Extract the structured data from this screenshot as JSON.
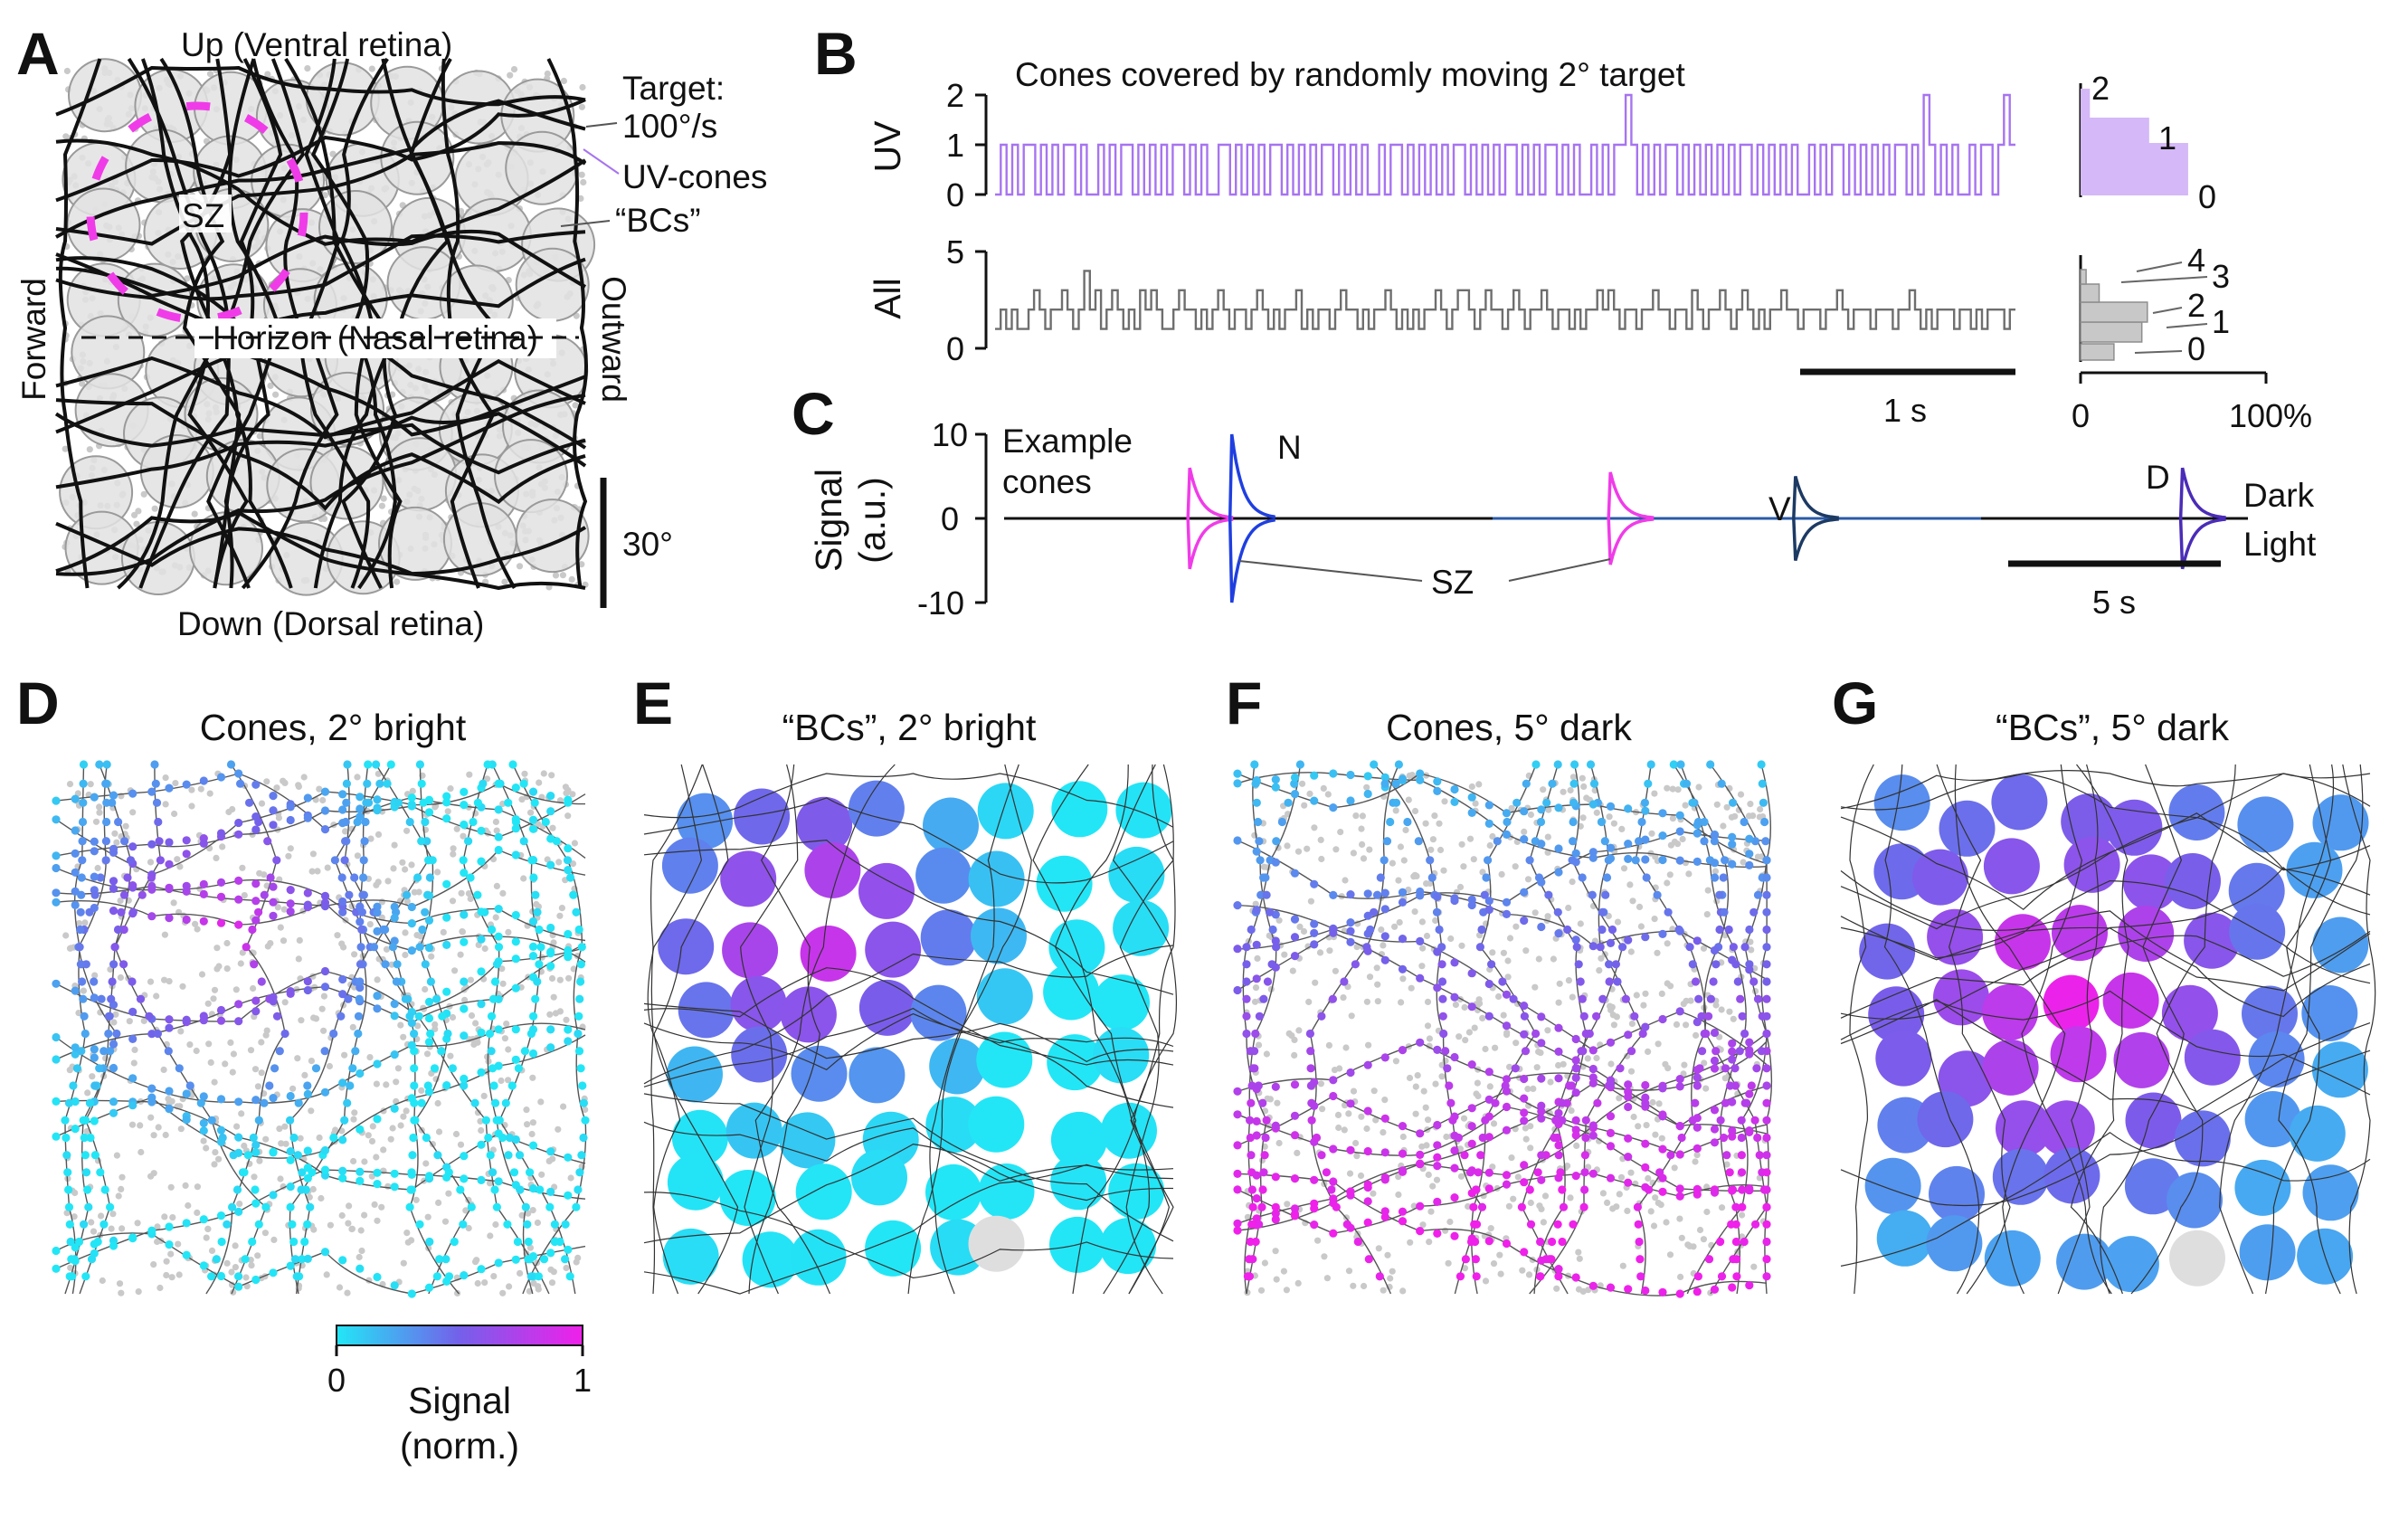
{
  "panels": {
    "A": {
      "letter": "A",
      "top": "Up (Ventral retina)",
      "bottom": "Down (Dorsal retina)",
      "left": "Forward",
      "right": "Outward",
      "horizon": "Horizon (Nasal retina)",
      "sz": "SZ",
      "target_line1": "Target:",
      "target_line2": "100°/s",
      "uv_cones": "UV-cones",
      "bcs": "“BCs”",
      "scale": "30°"
    },
    "B": {
      "letter": "B",
      "title": "Cones covered by randomly moving 2° target",
      "uv_label": "UV",
      "all_label": "All",
      "uv_ticks": [
        "2",
        "1",
        "0"
      ],
      "all_ticks": [
        "5",
        "0"
      ],
      "scale": "1 s",
      "hist_uv_labels": [
        "2",
        "1",
        "0"
      ],
      "hist_all_labels": [
        "4",
        "3",
        "2",
        "1",
        "0"
      ],
      "hist_axis": [
        "0",
        "100%"
      ]
    },
    "C": {
      "letter": "C",
      "ylabel1": "Signal",
      "ylabel2": "(a.u.)",
      "ticks": [
        "10",
        "0",
        "-10"
      ],
      "legend1": "Example",
      "legend2": "cones",
      "n": "N",
      "v": "V",
      "d": "D",
      "dark": "Dark",
      "light": "Light",
      "sz": "SZ",
      "scale": "5 s"
    },
    "D": {
      "letter": "D",
      "title": "Cones, 2° bright"
    },
    "E": {
      "letter": "E",
      "title": "“BCs”, 2° bright"
    },
    "F": {
      "letter": "F",
      "title": "Cones, 5° dark"
    },
    "G": {
      "letter": "G",
      "title": "“BCs”, 5° dark"
    },
    "colorbar": {
      "min": "0",
      "max": "1",
      "label1": "Signal",
      "label2": "(norm.)"
    }
  },
  "colors": {
    "uv_trace": "#a774f0",
    "all_trace": "#6e6e6e",
    "sz_marker": "#f03ce8",
    "colormap_low": "#22e6f6",
    "colormap_mid": "#7460ea",
    "colormap_high": "#f020ea",
    "cone_gray": "#c9c9c9"
  },
  "chart_data": [
    {
      "panel": "B",
      "type": "line",
      "title": "Cones covered by randomly moving 2° target",
      "series": [
        {
          "name": "UV",
          "ylim": [
            0,
            2
          ],
          "values": [
            0,
            1,
            0,
            1,
            0,
            1,
            1,
            0,
            1,
            0,
            1,
            0,
            1,
            1,
            0,
            1,
            0,
            0,
            1,
            0,
            1,
            0,
            1,
            1,
            0,
            1,
            0,
            1,
            0,
            1,
            0,
            1,
            1,
            0,
            1,
            0,
            1,
            0,
            0,
            1,
            1,
            0,
            1,
            0,
            1,
            0,
            1,
            0,
            1,
            1,
            0,
            1,
            0,
            1,
            0,
            1,
            0,
            1,
            1,
            0,
            1,
            0,
            1,
            0,
            1,
            0,
            0,
            1,
            0,
            1,
            1,
            0,
            1,
            0,
            1,
            0,
            1,
            0,
            1,
            0,
            1,
            1,
            0,
            1,
            0,
            1,
            0,
            1,
            0,
            1,
            1,
            0,
            1,
            0,
            1,
            0,
            1,
            1,
            0,
            1,
            0,
            1,
            0,
            0,
            1,
            0,
            1,
            0,
            1,
            1,
            2,
            1,
            0,
            1,
            0,
            1,
            0,
            1,
            1,
            0,
            1,
            0,
            1,
            0,
            1,
            0,
            1,
            0,
            1,
            0,
            1,
            1,
            0,
            1,
            0,
            1,
            0,
            1,
            0,
            1,
            0,
            0,
            1,
            0,
            1,
            0,
            1,
            1,
            0,
            1,
            0,
            1,
            0,
            1,
            0,
            1,
            0,
            1,
            1,
            0,
            1,
            0,
            2,
            1,
            0,
            1,
            0,
            1,
            0,
            0,
            1,
            0,
            1,
            1,
            0,
            1,
            2,
            1
          ]
        },
        {
          "name": "All",
          "ylim": [
            0,
            5
          ],
          "values": [
            1,
            2,
            1,
            2,
            1,
            1,
            2,
            3,
            2,
            1,
            2,
            2,
            3,
            2,
            1,
            2,
            4,
            2,
            3,
            1,
            2,
            3,
            2,
            1,
            2,
            1,
            3,
            2,
            3,
            2,
            1,
            1,
            2,
            3,
            2,
            2,
            1,
            2,
            1,
            2,
            3,
            2,
            1,
            2,
            2,
            1,
            2,
            3,
            2,
            1,
            2,
            1,
            2,
            2,
            3,
            1,
            2,
            1,
            2,
            2,
            1,
            2,
            3,
            2,
            2,
            1,
            2,
            1,
            2,
            2,
            3,
            2,
            1,
            2,
            1,
            2,
            1,
            2,
            2,
            3,
            2,
            1,
            2,
            3,
            3,
            2,
            1,
            2,
            3,
            2,
            2,
            1,
            2,
            3,
            2,
            1,
            2,
            2,
            3,
            2,
            1,
            2,
            2,
            1,
            2,
            1,
            2,
            2,
            3,
            2,
            3,
            2,
            1,
            2,
            2,
            1,
            2,
            2,
            3,
            2,
            2,
            1,
            2,
            2,
            1,
            3,
            2,
            1,
            2,
            2,
            3,
            2,
            1,
            2,
            3,
            2,
            1,
            2,
            1,
            2,
            2,
            3,
            2,
            2,
            1,
            2,
            2,
            2,
            1,
            2,
            2,
            3,
            2,
            1,
            2,
            2,
            2,
            1,
            2,
            2,
            2,
            1,
            2,
            2,
            3,
            2,
            1,
            2,
            1,
            2,
            2,
            2,
            1,
            2,
            2,
            1,
            2,
            1,
            2,
            2,
            2,
            1,
            2
          ]
        }
      ],
      "histogram_uv": {
        "categories": [
          "0",
          "1",
          "2"
        ],
        "percent": [
          58,
          37,
          5
        ]
      },
      "histogram_all": {
        "categories": [
          "0",
          "1",
          "2",
          "3",
          "4"
        ],
        "percent": [
          18,
          33,
          36,
          10,
          3
        ]
      },
      "hist_xlim": [
        0,
        100
      ]
    },
    {
      "panel": "C",
      "type": "line",
      "ylabel": "Signal (a.u.)",
      "ylim": [
        -10,
        10
      ],
      "series": [
        {
          "name": "SZ",
          "events": [
            {
              "t": 2.4,
              "amp": 6
            },
            {
              "t": 7.4,
              "amp": 5.5
            }
          ]
        },
        {
          "name": "N",
          "events": [
            {
              "t": 2.9,
              "amp": 10
            }
          ]
        },
        {
          "name": "V",
          "events": [
            {
              "t": 9.6,
              "amp": 5
            }
          ]
        },
        {
          "name": "D",
          "events": [
            {
              "t": 14.2,
              "amp": 6
            }
          ]
        }
      ]
    }
  ]
}
